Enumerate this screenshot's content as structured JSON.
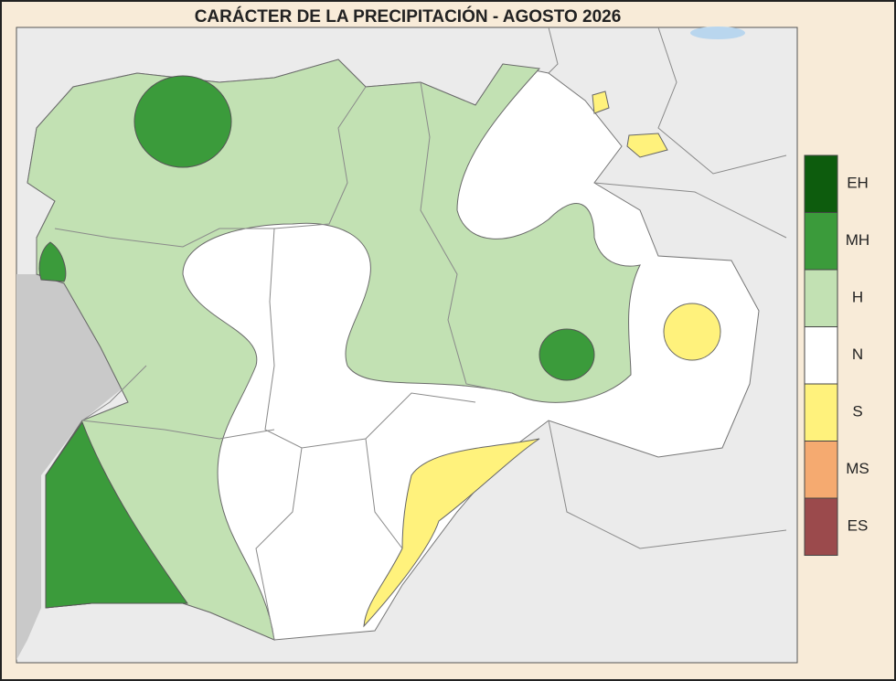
{
  "title": "CARÁCTER DE LA PRECIPITACIÓN - AGOSTO 2026",
  "legend": [
    {
      "label": "EH",
      "color": "#0d5c0d"
    },
    {
      "label": "MH",
      "color": "#3b9b3b"
    },
    {
      "label": "H",
      "color": "#c2e1b3"
    },
    {
      "label": "N",
      "color": "#ffffff"
    },
    {
      "label": "S",
      "color": "#fff27c"
    },
    {
      "label": "MS",
      "color": "#f5aa70"
    },
    {
      "label": "ES",
      "color": "#9b4a4c"
    }
  ]
}
